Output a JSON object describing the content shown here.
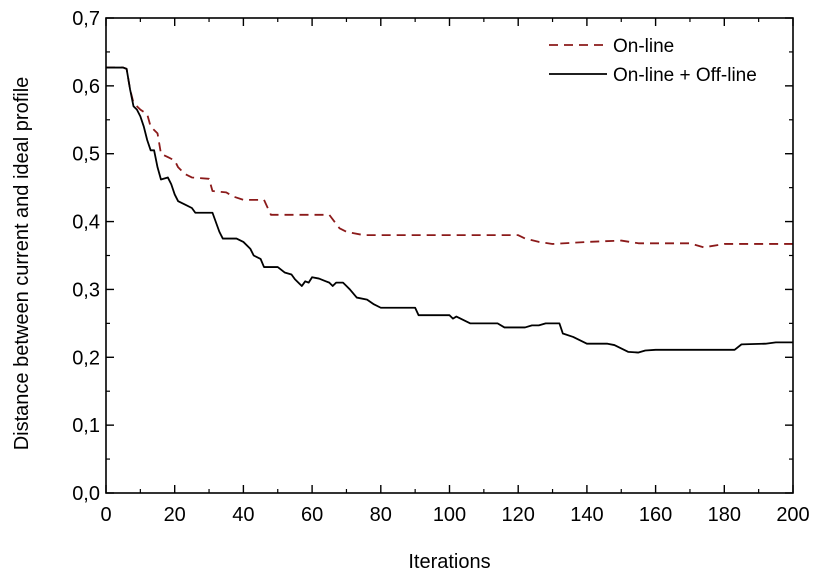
{
  "chart_data": {
    "type": "line",
    "title": "",
    "xlabel": "Iterations",
    "ylabel": "Distance between current and ideal profile",
    "xlim": [
      0,
      200
    ],
    "ylim": [
      0,
      0.7
    ],
    "x_ticks": [
      0,
      20,
      40,
      60,
      80,
      100,
      120,
      140,
      160,
      180,
      200
    ],
    "x_tick_labels": [
      "0",
      "20",
      "40",
      "60",
      "80",
      "100",
      "120",
      "140",
      "160",
      "180",
      "200"
    ],
    "y_ticks": [
      0,
      0.1,
      0.2,
      0.3,
      0.4,
      0.5,
      0.6,
      0.7
    ],
    "y_tick_labels": [
      "0,0",
      "0,1",
      "0,2",
      "0,3",
      "0,4",
      "0,5",
      "0,6",
      "0,7"
    ],
    "grid": false,
    "legend_position": "top-right",
    "series": [
      {
        "name": "On-line",
        "color": "#8b1a1a",
        "dash": "dashed",
        "points": [
          [
            0,
            0.627
          ],
          [
            5,
            0.627
          ],
          [
            6,
            0.625
          ],
          [
            7,
            0.595
          ],
          [
            8,
            0.575
          ],
          [
            9,
            0.57
          ],
          [
            10,
            0.565
          ],
          [
            12,
            0.558
          ],
          [
            13,
            0.54
          ],
          [
            15,
            0.53
          ],
          [
            16,
            0.5
          ],
          [
            18,
            0.495
          ],
          [
            20,
            0.49
          ],
          [
            21,
            0.48
          ],
          [
            23,
            0.47
          ],
          [
            25,
            0.465
          ],
          [
            30,
            0.463
          ],
          [
            31,
            0.445
          ],
          [
            35,
            0.443
          ],
          [
            37,
            0.437
          ],
          [
            40,
            0.432
          ],
          [
            46,
            0.432
          ],
          [
            48,
            0.41
          ],
          [
            65,
            0.41
          ],
          [
            68,
            0.39
          ],
          [
            70,
            0.385
          ],
          [
            75,
            0.38
          ],
          [
            120,
            0.38
          ],
          [
            122,
            0.375
          ],
          [
            126,
            0.37
          ],
          [
            130,
            0.367
          ],
          [
            140,
            0.37
          ],
          [
            150,
            0.372
          ],
          [
            155,
            0.368
          ],
          [
            170,
            0.368
          ],
          [
            174,
            0.362
          ],
          [
            180,
            0.367
          ],
          [
            200,
            0.367
          ]
        ]
      },
      {
        "name": "On-line + Off-line",
        "color": "#000000",
        "dash": "solid",
        "points": [
          [
            0,
            0.627
          ],
          [
            5,
            0.627
          ],
          [
            6,
            0.625
          ],
          [
            7,
            0.595
          ],
          [
            8,
            0.57
          ],
          [
            9,
            0.565
          ],
          [
            10,
            0.555
          ],
          [
            11,
            0.54
          ],
          [
            12,
            0.52
          ],
          [
            13,
            0.505
          ],
          [
            14,
            0.505
          ],
          [
            15,
            0.48
          ],
          [
            16,
            0.462
          ],
          [
            18,
            0.465
          ],
          [
            19,
            0.455
          ],
          [
            20,
            0.44
          ],
          [
            21,
            0.43
          ],
          [
            23,
            0.425
          ],
          [
            25,
            0.42
          ],
          [
            26,
            0.413
          ],
          [
            31,
            0.413
          ],
          [
            33,
            0.385
          ],
          [
            34,
            0.375
          ],
          [
            38,
            0.375
          ],
          [
            40,
            0.37
          ],
          [
            42,
            0.36
          ],
          [
            43,
            0.35
          ],
          [
            45,
            0.345
          ],
          [
            46,
            0.333
          ],
          [
            50,
            0.333
          ],
          [
            52,
            0.325
          ],
          [
            54,
            0.322
          ],
          [
            55,
            0.315
          ],
          [
            56,
            0.31
          ],
          [
            57,
            0.305
          ],
          [
            58,
            0.312
          ],
          [
            59,
            0.31
          ],
          [
            60,
            0.318
          ],
          [
            62,
            0.316
          ],
          [
            64,
            0.312
          ],
          [
            65,
            0.31
          ],
          [
            66,
            0.305
          ],
          [
            67,
            0.31
          ],
          [
            69,
            0.31
          ],
          [
            70,
            0.305
          ],
          [
            71,
            0.3
          ],
          [
            73,
            0.288
          ],
          [
            76,
            0.285
          ],
          [
            78,
            0.278
          ],
          [
            80,
            0.273
          ],
          [
            90,
            0.273
          ],
          [
            91,
            0.262
          ],
          [
            100,
            0.262
          ],
          [
            101,
            0.257
          ],
          [
            102,
            0.26
          ],
          [
            104,
            0.255
          ],
          [
            106,
            0.25
          ],
          [
            114,
            0.25
          ],
          [
            116,
            0.244
          ],
          [
            122,
            0.244
          ],
          [
            124,
            0.247
          ],
          [
            126,
            0.247
          ],
          [
            128,
            0.25
          ],
          [
            132,
            0.25
          ],
          [
            133,
            0.235
          ],
          [
            136,
            0.23
          ],
          [
            138,
            0.225
          ],
          [
            140,
            0.22
          ],
          [
            146,
            0.22
          ],
          [
            148,
            0.218
          ],
          [
            150,
            0.213
          ],
          [
            152,
            0.208
          ],
          [
            155,
            0.207
          ],
          [
            157,
            0.21
          ],
          [
            160,
            0.211
          ],
          [
            183,
            0.211
          ],
          [
            185,
            0.219
          ],
          [
            192,
            0.22
          ],
          [
            195,
            0.222
          ],
          [
            200,
            0.222
          ]
        ]
      }
    ]
  }
}
